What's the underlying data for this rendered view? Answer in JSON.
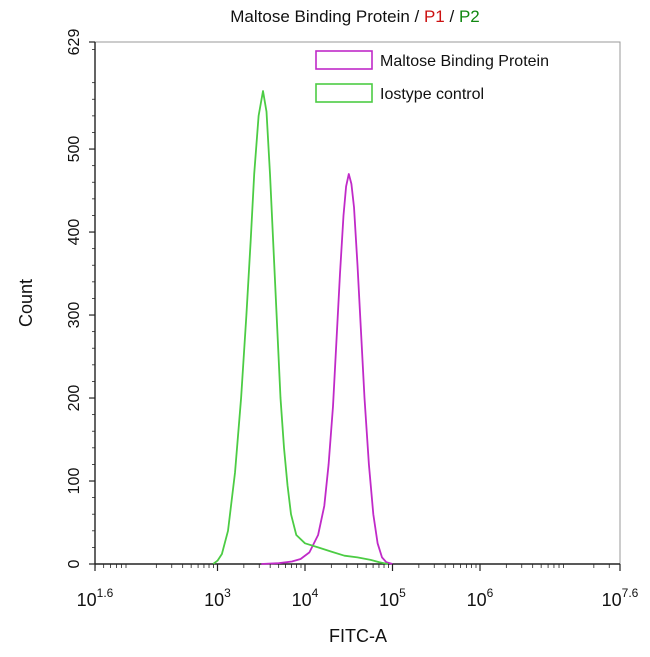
{
  "chart_data": {
    "type": "area",
    "title_parts": [
      {
        "text": "Maltose Binding Protein",
        "color": "#111111"
      },
      {
        "text": " / ",
        "color": "#111111"
      },
      {
        "text": "P1",
        "color": "#cc1111"
      },
      {
        "text": " / ",
        "color": "#111111"
      },
      {
        "text": "P2",
        "color": "#118811"
      }
    ],
    "xlabel": "FITC-A",
    "ylabel": "Count",
    "x_scale": "log10",
    "xlim": [
      1.6,
      7.6
    ],
    "ylim": [
      0,
      629
    ],
    "x_ticks": [
      {
        "exp": 1.6,
        "base": "10",
        "sup": "1.6"
      },
      {
        "exp": 3,
        "base": "10",
        "sup": "3"
      },
      {
        "exp": 4,
        "base": "10",
        "sup": "4"
      },
      {
        "exp": 5,
        "base": "10",
        "sup": "5"
      },
      {
        "exp": 6,
        "base": "10",
        "sup": "6"
      },
      {
        "exp": 7.6,
        "base": "10",
        "sup": "7.6"
      }
    ],
    "y_ticks": [
      0,
      100,
      200,
      300,
      400,
      500,
      629
    ],
    "legend_position": "top-right",
    "series": [
      {
        "name": "Maltose Binding Protein",
        "color": "#c02ac8",
        "points": [
          [
            3.5,
            0
          ],
          [
            3.7,
            1
          ],
          [
            3.85,
            3
          ],
          [
            3.95,
            6
          ],
          [
            4.05,
            14
          ],
          [
            4.15,
            35
          ],
          [
            4.22,
            70
          ],
          [
            4.27,
            120
          ],
          [
            4.32,
            190
          ],
          [
            4.36,
            270
          ],
          [
            4.4,
            350
          ],
          [
            4.44,
            420
          ],
          [
            4.47,
            455
          ],
          [
            4.5,
            470
          ],
          [
            4.53,
            458
          ],
          [
            4.56,
            430
          ],
          [
            4.6,
            360
          ],
          [
            4.64,
            280
          ],
          [
            4.68,
            200
          ],
          [
            4.73,
            120
          ],
          [
            4.78,
            60
          ],
          [
            4.83,
            25
          ],
          [
            4.88,
            8
          ],
          [
            4.93,
            2
          ],
          [
            5.0,
            0
          ]
        ]
      },
      {
        "name": "Iostype control",
        "color": "#4ccc44",
        "points": [
          [
            2.95,
            0
          ],
          [
            3.0,
            4
          ],
          [
            3.05,
            12
          ],
          [
            3.12,
            40
          ],
          [
            3.2,
            110
          ],
          [
            3.27,
            200
          ],
          [
            3.33,
            300
          ],
          [
            3.38,
            390
          ],
          [
            3.42,
            470
          ],
          [
            3.47,
            540
          ],
          [
            3.52,
            570
          ],
          [
            3.56,
            545
          ],
          [
            3.6,
            470
          ],
          [
            3.64,
            380
          ],
          [
            3.68,
            290
          ],
          [
            3.72,
            200
          ],
          [
            3.76,
            140
          ],
          [
            3.8,
            95
          ],
          [
            3.84,
            60
          ],
          [
            3.9,
            35
          ],
          [
            4.0,
            25
          ],
          [
            4.15,
            20
          ],
          [
            4.3,
            15
          ],
          [
            4.45,
            10
          ],
          [
            4.6,
            8
          ],
          [
            4.75,
            5
          ],
          [
            4.85,
            2
          ],
          [
            4.95,
            0
          ]
        ]
      }
    ]
  }
}
